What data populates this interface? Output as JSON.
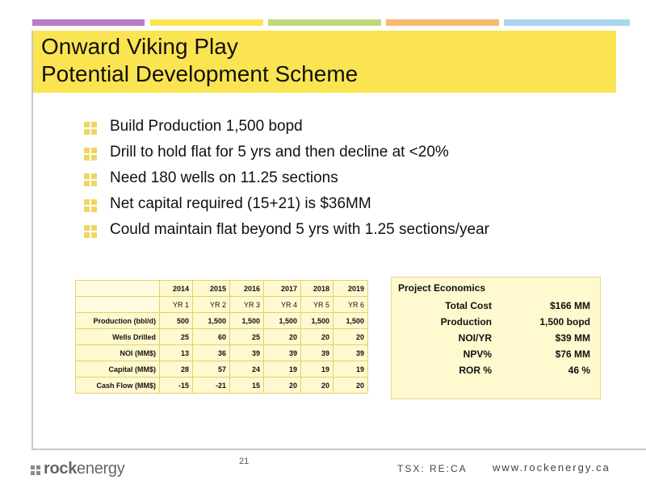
{
  "colors": {
    "accent_bars": [
      "#b57cc1",
      "#fbe451",
      "#c2d77a",
      "#f7b96a",
      "#a9d6ef"
    ],
    "title_band": "#fbe451",
    "bullet_square": "#efd663",
    "table_fill": "#fff9cf"
  },
  "header": {
    "title_line1": "Onward Viking Play",
    "title_line2": "Potential Development Scheme"
  },
  "bullets": [
    {
      "icon": "square-grid-icon",
      "text": "Build Production 1,500 bopd"
    },
    {
      "icon": "square-grid-icon",
      "text": "Drill to hold flat for 5 yrs and then decline at <20%"
    },
    {
      "icon": "square-grid-icon",
      "text": "Need 180 wells on 11.25 sections"
    },
    {
      "icon": "square-grid-icon",
      "text": "Net capital required (15+21) is $36MM"
    },
    {
      "icon": "square-grid-icon",
      "text": "Could maintain flat beyond 5 yrs with 1.25 sections/year"
    }
  ],
  "table": {
    "years": [
      "2014",
      "2015",
      "2016",
      "2017",
      "2018",
      "2019"
    ],
    "yr_labels": [
      "YR 1",
      "YR 2",
      "YR 3",
      "YR 4",
      "YR 5",
      "YR 6"
    ],
    "rows": [
      {
        "label": "Production (bbl/d)",
        "values": [
          "500",
          "1,500",
          "1,500",
          "1,500",
          "1,500",
          "1,500"
        ]
      },
      {
        "label": "Wells Drilled",
        "values": [
          "25",
          "60",
          "25",
          "20",
          "20",
          "20"
        ]
      },
      {
        "label": "NOI (MM$)",
        "values": [
          "13",
          "36",
          "39",
          "39",
          "39",
          "39"
        ]
      },
      {
        "label": "Capital (MM$)",
        "values": [
          "28",
          "57",
          "24",
          "19",
          "19",
          "19"
        ]
      },
      {
        "label": "Cash Flow (MM$)",
        "values": [
          "-15",
          "-21",
          "15",
          "20",
          "20",
          "20"
        ]
      }
    ]
  },
  "economics": {
    "title": "Project Economics",
    "rows": [
      {
        "label": "Total Cost",
        "value": "$166 MM"
      },
      {
        "label": "Production",
        "value": "1,500 bopd"
      },
      {
        "label": "NOI/YR",
        "value": "$39 MM"
      },
      {
        "label": "NPV%",
        "value": "$76 MM"
      },
      {
        "label": "ROR %",
        "value": "46 %"
      }
    ]
  },
  "footer": {
    "logo_prefix": "rock",
    "logo_suffix": "energy",
    "page_number": "21",
    "ticker": "TSX: RE:CA",
    "website": "www.rockenergy.ca"
  }
}
